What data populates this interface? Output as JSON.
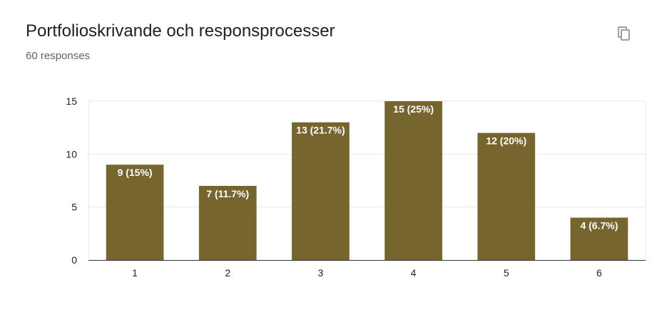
{
  "header": {
    "title": "Portfolioskrivande och responsprocesser",
    "responses": "60 responses"
  },
  "toolbar": {
    "copy_icon": "copy-icon"
  },
  "chart_data": {
    "type": "bar",
    "categories": [
      "1",
      "2",
      "3",
      "4",
      "5",
      "6"
    ],
    "values": [
      9,
      7,
      13,
      15,
      12,
      4
    ],
    "labels": [
      "9 (15%)",
      "7 (11.7%)",
      "13 (21.7%)",
      "15 (25%)",
      "12 (20%)",
      "4 (6.7%)"
    ],
    "ylim": [
      0,
      15
    ],
    "yticks": [
      0,
      5,
      10,
      15
    ],
    "title": "",
    "xlabel": "",
    "ylabel": "",
    "grid": true,
    "bar_color": "#76652c",
    "grid_color": "#e6e6e6",
    "axis_color": "#333333"
  }
}
